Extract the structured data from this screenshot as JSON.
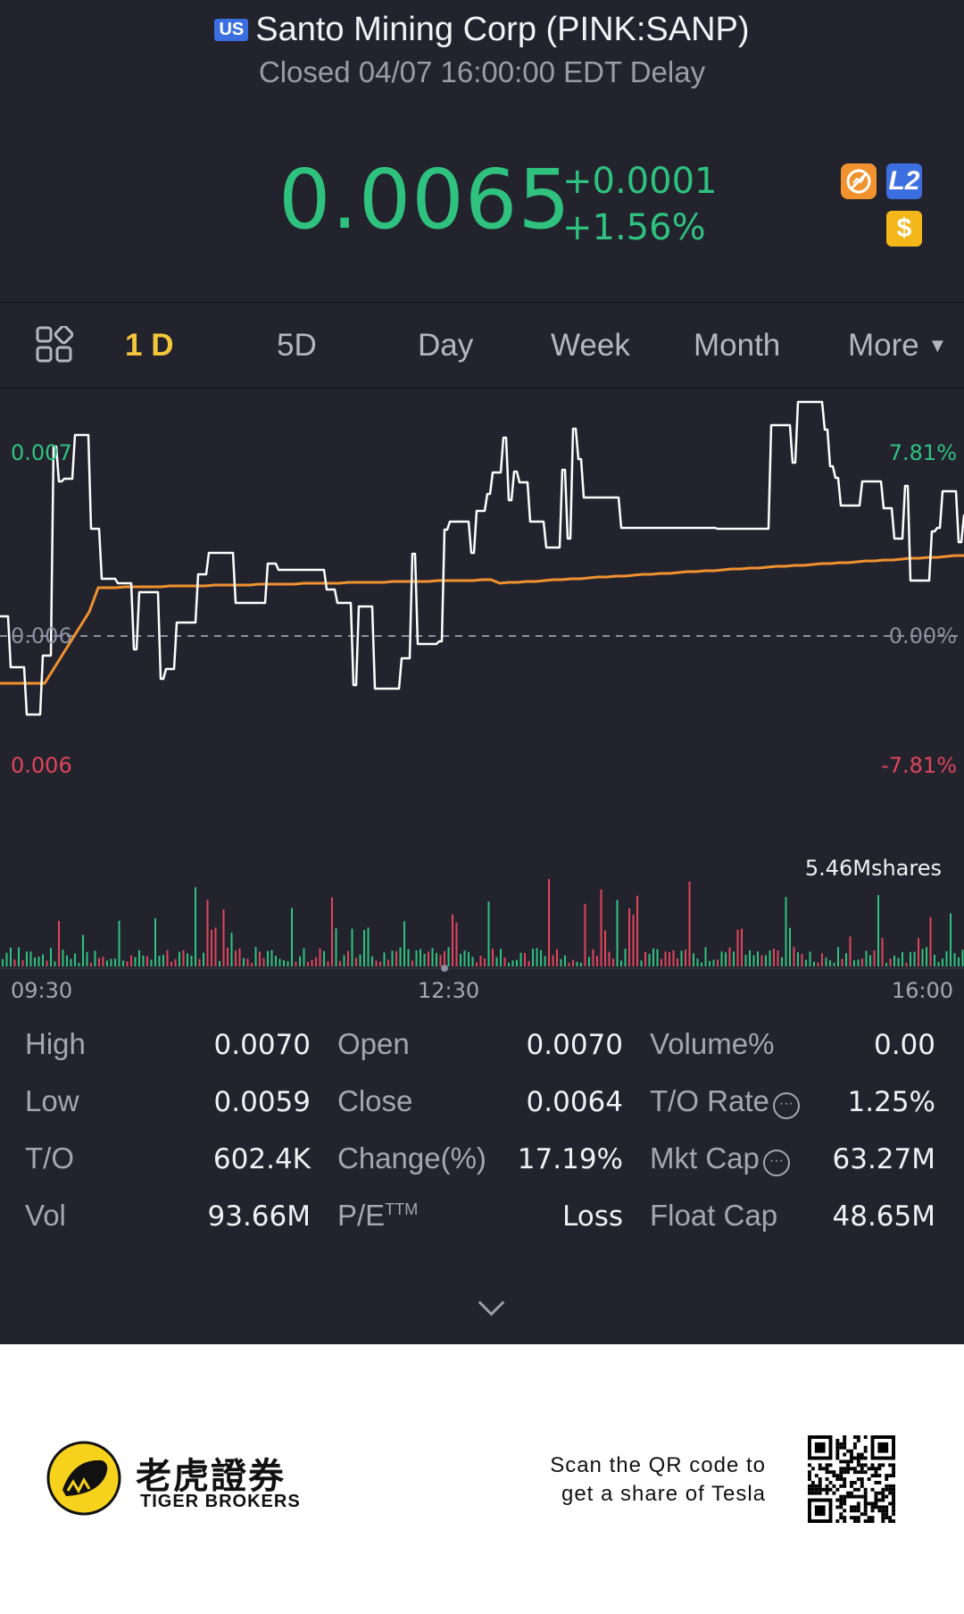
{
  "header": {
    "market_badge": "US",
    "title": "Santo Mining Corp (PINK:SANP)",
    "status": "Closed 04/07 16:00:00 EDT Delay"
  },
  "quote": {
    "price": "0.0065",
    "change": "+0.0001",
    "change_pct": "+1.56%",
    "icons": [
      "no-trade-icon",
      "level2-icon",
      "dollar-icon"
    ],
    "l2_label": "L2",
    "dollar_label": "$"
  },
  "tabs": {
    "items": [
      "1 D",
      "5D",
      "Day",
      "Week",
      "Month",
      "More"
    ],
    "active": "1 D"
  },
  "chart": {
    "y_top": "0.007",
    "y_mid": "0.006",
    "y_bottom": "0.006",
    "pct_top": "7.81%",
    "pct_mid": "0.00%",
    "pct_bottom": "-7.81%",
    "volume_label": "5.46Mshares",
    "x_ticks": [
      "09:30",
      "12:30",
      "16:00"
    ],
    "colors": {
      "price_line": "#ffffff",
      "avg_line": "#f0922e",
      "up": "#2ec27e",
      "down": "#e0455a"
    }
  },
  "stats": [
    {
      "label": "High",
      "value": "0.0070"
    },
    {
      "label": "Open",
      "value": "0.0070"
    },
    {
      "label": "Volume%",
      "value": "0.00"
    },
    {
      "label": "Low",
      "value": "0.0059"
    },
    {
      "label": "Close",
      "value": "0.0064"
    },
    {
      "label": "T/O Rate",
      "value": "1.25%"
    },
    {
      "label": "T/O",
      "value": "602.4K"
    },
    {
      "label": "Change(%)",
      "value": "17.19%"
    },
    {
      "label": "Mkt Cap",
      "value": "63.27M"
    },
    {
      "label": "Vol",
      "value": "93.66M"
    },
    {
      "label": "P/E",
      "sup": "TTM",
      "value": "Loss"
    },
    {
      "label": "Float Cap",
      "value": "48.65M"
    }
  ],
  "footer": {
    "brand_cn": "老虎證券",
    "brand_en": "TIGER BROKERS",
    "scan_line1": "Scan the QR code to",
    "scan_line2": "get a share of Tesla"
  }
}
